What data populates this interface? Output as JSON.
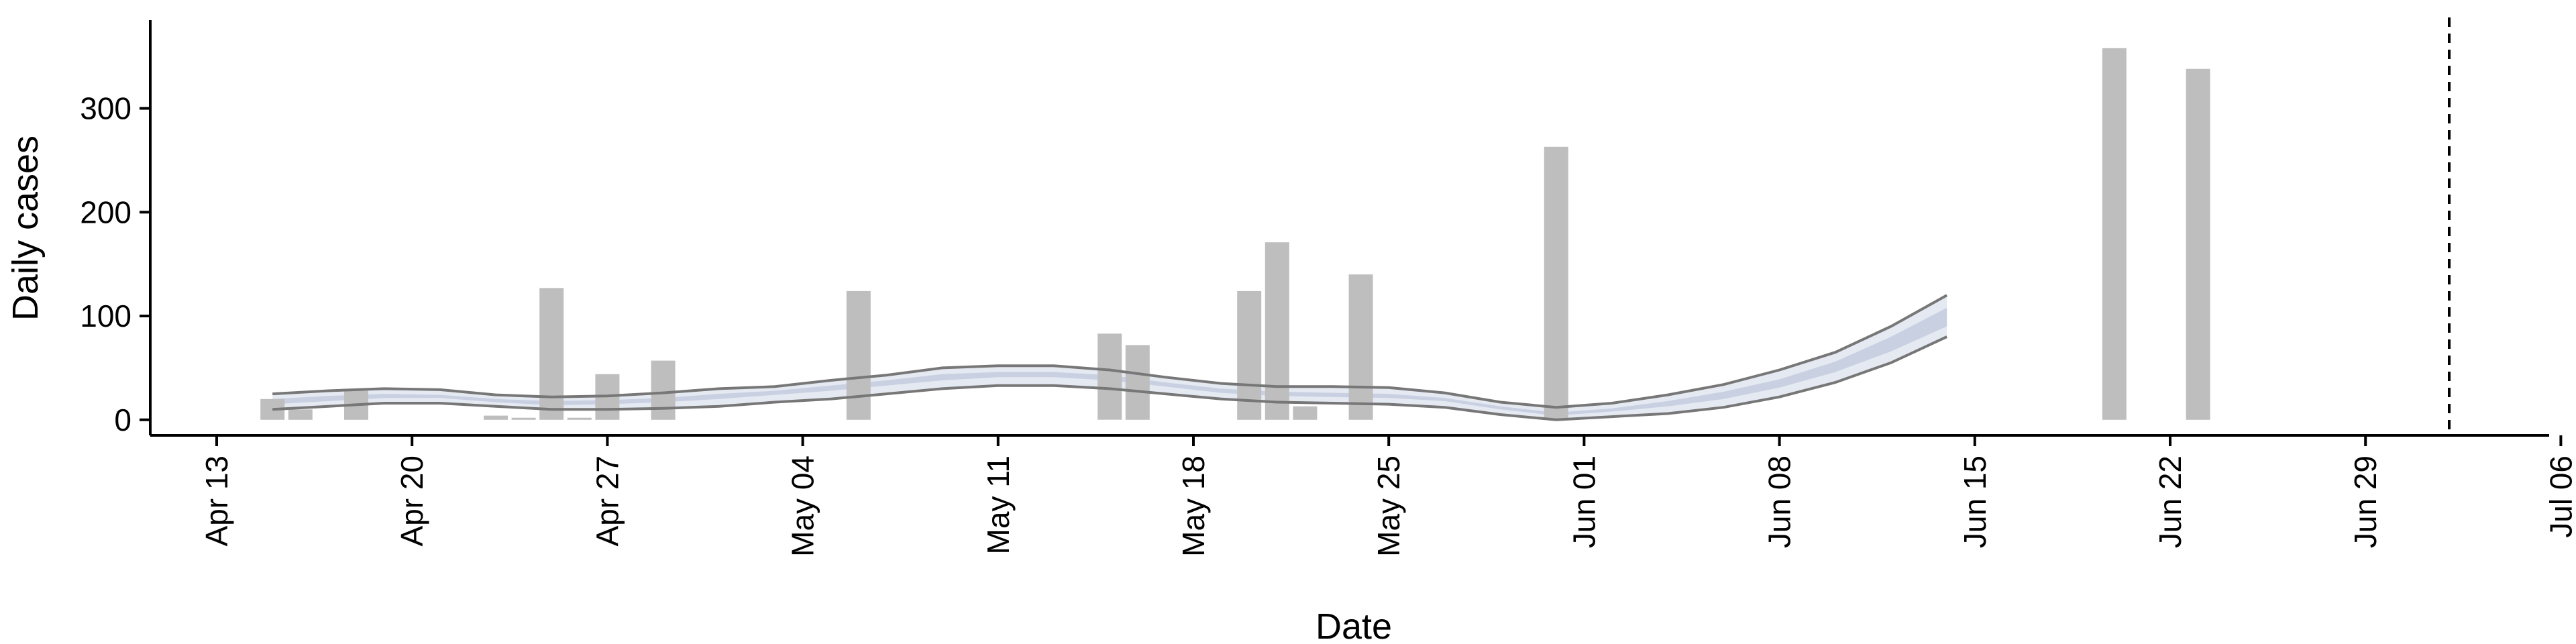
{
  "chart_data": {
    "type": "bar",
    "xlabel": "Date",
    "ylabel": "Daily cases",
    "xlim": [
      "2020-04-13",
      "2020-07-06"
    ],
    "ylim": [
      -15,
      385
    ],
    "grid": false,
    "x_ticks": [
      {
        "date": "2020-04-13",
        "label": "Apr 13"
      },
      {
        "date": "2020-04-20",
        "label": "Apr 20"
      },
      {
        "date": "2020-04-27",
        "label": "Apr 27"
      },
      {
        "date": "2020-05-04",
        "label": "May 04"
      },
      {
        "date": "2020-05-11",
        "label": "May 11"
      },
      {
        "date": "2020-05-18",
        "label": "May 18"
      },
      {
        "date": "2020-05-25",
        "label": "May 25"
      },
      {
        "date": "2020-06-01",
        "label": "Jun 01"
      },
      {
        "date": "2020-06-08",
        "label": "Jun 08"
      },
      {
        "date": "2020-06-15",
        "label": "Jun 15"
      },
      {
        "date": "2020-06-22",
        "label": "Jun 22"
      },
      {
        "date": "2020-06-29",
        "label": "Jun 29"
      },
      {
        "date": "2020-07-06",
        "label": "Jul 06"
      }
    ],
    "y_ticks": [
      0,
      100,
      200,
      300
    ],
    "bars": {
      "color": "#bebebe",
      "dates": [
        "2020-04-15",
        "2020-04-16",
        "2020-04-18",
        "2020-04-23",
        "2020-04-24",
        "2020-04-25",
        "2020-04-26",
        "2020-04-27",
        "2020-04-29",
        "2020-05-06",
        "2020-05-15",
        "2020-05-16",
        "2020-05-20",
        "2020-05-21",
        "2020-05-22",
        "2020-05-24",
        "2020-05-31",
        "2020-06-20",
        "2020-06-23"
      ],
      "values": [
        20,
        10,
        28,
        4,
        2,
        127,
        2,
        44,
        57,
        124,
        83,
        72,
        124,
        171,
        13,
        140,
        263,
        358,
        338
      ]
    },
    "series": [
      {
        "type": "band",
        "fill": "#d0d7e6",
        "edge": "#777777",
        "x": [
          "2020-04-15",
          "2020-04-17",
          "2020-04-19",
          "2020-04-21",
          "2020-04-23",
          "2020-04-25",
          "2020-04-27",
          "2020-04-29",
          "2020-05-01",
          "2020-05-03",
          "2020-05-05",
          "2020-05-07",
          "2020-05-09",
          "2020-05-11",
          "2020-05-13",
          "2020-05-15",
          "2020-05-17",
          "2020-05-19",
          "2020-05-21",
          "2020-05-23",
          "2020-05-25",
          "2020-05-27",
          "2020-05-29",
          "2020-05-31",
          "2020-06-02",
          "2020-06-04",
          "2020-06-06",
          "2020-06-08",
          "2020-06-10",
          "2020-06-12",
          "2020-06-14"
        ],
        "lower": [
          10,
          13,
          16,
          16,
          13,
          10,
          10,
          11,
          13,
          17,
          20,
          25,
          30,
          33,
          33,
          30,
          25,
          20,
          17,
          16,
          15,
          12,
          5,
          0,
          3,
          6,
          12,
          22,
          36,
          55,
          80
        ],
        "upper": [
          25,
          28,
          30,
          29,
          24,
          22,
          23,
          26,
          30,
          32,
          38,
          43,
          50,
          52,
          52,
          48,
          41,
          35,
          32,
          32,
          31,
          26,
          17,
          12,
          16,
          24,
          34,
          48,
          65,
          90,
          120
        ],
        "inner_band": {
          "fill": "#c4cde0",
          "lower": [
            15,
            18,
            21,
            21,
            17,
            14,
            15,
            17,
            20,
            24,
            28,
            33,
            38,
            41,
            41,
            38,
            32,
            26,
            23,
            22,
            21,
            18,
            10,
            4,
            8,
            13,
            20,
            31,
            46,
            66,
            90
          ],
          "upper": [
            20,
            23,
            25,
            24,
            20,
            18,
            19,
            21,
            25,
            28,
            33,
            38,
            44,
            46,
            46,
            43,
            36,
            30,
            27,
            26,
            25,
            21,
            13,
            7,
            11,
            18,
            27,
            39,
            56,
            80,
            108
          ]
        }
      }
    ],
    "vline": {
      "date": "2020-07-02",
      "style": "dashed",
      "color": "#000000"
    }
  }
}
